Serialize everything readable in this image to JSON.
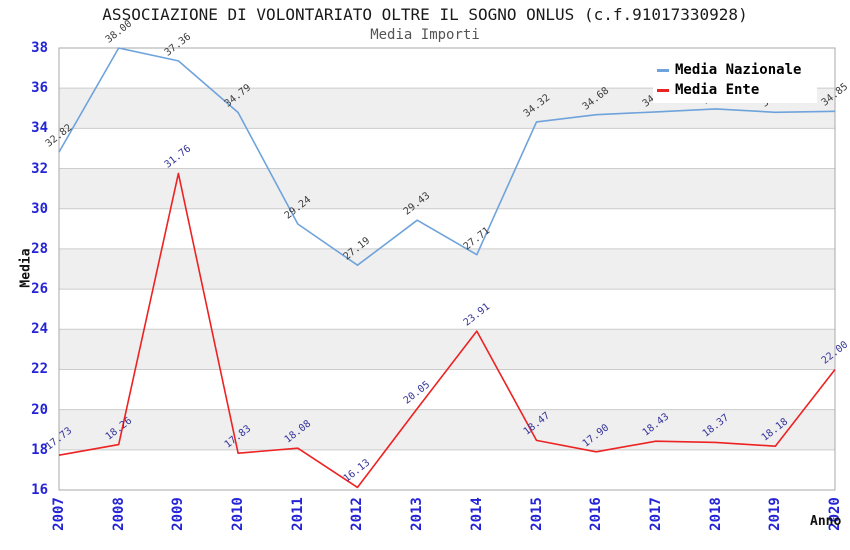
{
  "title": "ASSOCIAZIONE DI VOLONTARIATO OLTRE IL SOGNO ONLUS (c.f.91017330928)",
  "subtitle": "Media Importi",
  "chart_data": {
    "type": "line",
    "title": "ASSOCIAZIONE DI VOLONTARIATO OLTRE IL SOGNO ONLUS (c.f.91017330928)",
    "subtitle": "Media Importi",
    "x": [
      "2007",
      "2008",
      "2009",
      "2010",
      "2011",
      "2012",
      "2013",
      "2014",
      "2015",
      "2016",
      "2017",
      "2018",
      "2019",
      "2020"
    ],
    "series": [
      {
        "name": "Media Nazionale",
        "color": "#6fa3db",
        "label_color": "#3a3a3a",
        "values": [
          32.82,
          38.0,
          37.36,
          34.79,
          29.24,
          27.19,
          29.43,
          27.71,
          34.32,
          34.68,
          34.82,
          34.97,
          34.8,
          34.85
        ]
      },
      {
        "name": "Media Ente",
        "color": "#ed2222",
        "label_color": "#333399",
        "values": [
          17.73,
          18.26,
          31.76,
          17.83,
          18.08,
          16.13,
          20.05,
          23.91,
          18.47,
          17.9,
          18.43,
          18.37,
          18.18,
          22.0
        ]
      }
    ],
    "xlabel": "Anno",
    "ylabel": "Media",
    "ylim": [
      16,
      38
    ],
    "ytick_step": 2,
    "grid": true,
    "legend_position": "top-right"
  },
  "style": {
    "band_fill": "#efefef",
    "gridline_color": "#cccccc",
    "frame_color": "#aaaaaa",
    "tick_color": "#2424d6"
  }
}
